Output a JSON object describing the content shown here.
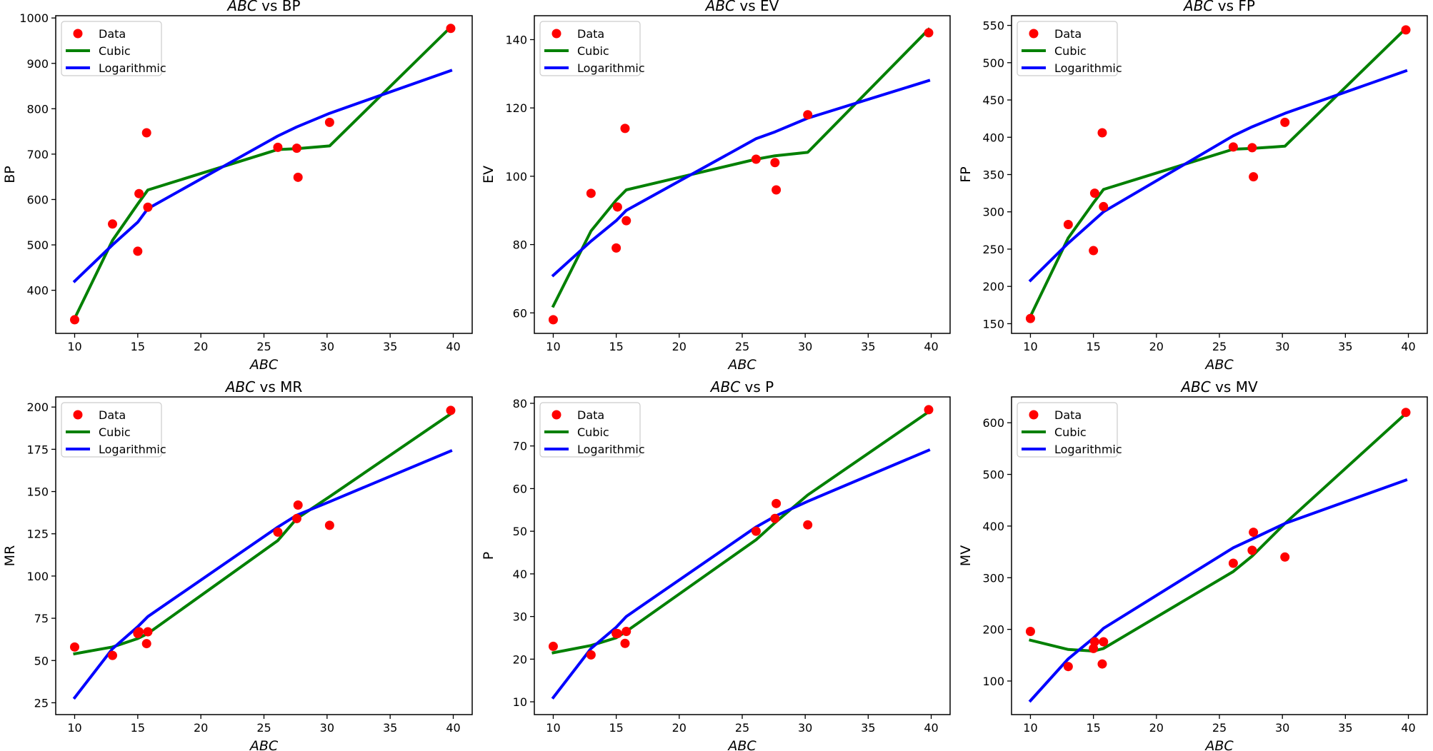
{
  "chart_data": [
    {
      "type": "scatter+line",
      "title_var": "ABC",
      "title_rest": " vs BP",
      "xlabel": "ABC",
      "ylabel": "BP",
      "xlim": [
        8.5,
        41.5
      ],
      "ylim": [
        305,
        1005
      ],
      "xticks": [
        10,
        15,
        20,
        25,
        30,
        35,
        40
      ],
      "yticks": [
        400,
        500,
        600,
        700,
        800,
        900,
        1000
      ],
      "legend": [
        "Data",
        "Cubic",
        "Logarithmic"
      ],
      "legend_position": "upper-left",
      "colors": {
        "data": "#ff0000",
        "cubic": "#008000",
        "log": "#0000ff"
      },
      "data_x": [
        10,
        13,
        15,
        15.1,
        15.8,
        15.7,
        26.1,
        27.6,
        27.7,
        30.2,
        39.8
      ],
      "data_y": [
        335,
        546,
        486,
        613,
        583,
        747,
        715,
        713,
        649,
        770,
        977
      ],
      "cubic_x": [
        10,
        13,
        15,
        15.8,
        26.1,
        27.6,
        30.2,
        39.8
      ],
      "cubic_y": [
        338,
        510,
        590,
        621,
        710,
        712,
        718,
        980
      ],
      "log_x": [
        10,
        13,
        15,
        15.8,
        26.1,
        27.6,
        30.2,
        39.8
      ],
      "log_y": [
        420,
        500,
        550,
        580,
        740,
        760,
        790,
        884
      ]
    },
    {
      "type": "scatter+line",
      "title_var": "ABC",
      "title_rest": " vs EV",
      "xlabel": "ABC",
      "ylabel": "EV",
      "xlim": [
        8.5,
        41.5
      ],
      "ylim": [
        54,
        147
      ],
      "xticks": [
        10,
        15,
        20,
        25,
        30,
        35,
        40
      ],
      "yticks": [
        60,
        80,
        100,
        120,
        140
      ],
      "legend": [
        "Data",
        "Cubic",
        "Logarithmic"
      ],
      "legend_position": "upper-left",
      "colors": {
        "data": "#ff0000",
        "cubic": "#008000",
        "log": "#0000ff"
      },
      "data_x": [
        10,
        13,
        15,
        15.1,
        15.8,
        15.7,
        26.1,
        27.6,
        27.7,
        30.2,
        39.8
      ],
      "data_y": [
        58,
        95,
        79,
        91,
        87,
        114,
        105,
        104,
        96,
        118,
        142
      ],
      "cubic_x": [
        10,
        13,
        15,
        15.8,
        26.1,
        27.6,
        30.2,
        39.8
      ],
      "cubic_y": [
        62,
        84,
        93,
        96,
        105,
        106,
        107,
        143
      ],
      "log_x": [
        10,
        13,
        15,
        15.8,
        26.1,
        27.6,
        30.2,
        39.8
      ],
      "log_y": [
        71,
        81,
        87,
        90,
        111,
        113,
        117,
        128
      ]
    },
    {
      "type": "scatter+line",
      "title_var": "ABC",
      "title_rest": " vs FP",
      "xlabel": "ABC",
      "ylabel": "FP",
      "xlim": [
        8.5,
        41.5
      ],
      "ylim": [
        137,
        563
      ],
      "xticks": [
        10,
        15,
        20,
        25,
        30,
        35,
        40
      ],
      "yticks": [
        150,
        200,
        250,
        300,
        350,
        400,
        450,
        500,
        550
      ],
      "legend": [
        "Data",
        "Cubic",
        "Logarithmic"
      ],
      "legend_position": "upper-left",
      "colors": {
        "data": "#ff0000",
        "cubic": "#008000",
        "log": "#0000ff"
      },
      "data_x": [
        10,
        13,
        15,
        15.1,
        15.8,
        15.7,
        26.1,
        27.6,
        27.7,
        30.2,
        39.8
      ],
      "data_y": [
        157,
        283,
        248,
        325,
        307,
        406,
        387,
        386,
        347,
        420,
        544
      ],
      "cubic_x": [
        10,
        13,
        15,
        15.8,
        26.1,
        27.6,
        30.2,
        39.8
      ],
      "cubic_y": [
        160,
        265,
        312,
        330,
        384,
        385,
        388,
        546
      ],
      "log_x": [
        10,
        13,
        15,
        15.8,
        26.1,
        27.6,
        30.2,
        39.8
      ],
      "log_y": [
        208,
        258,
        288,
        300,
        402,
        414,
        432,
        489
      ]
    },
    {
      "type": "scatter+line",
      "title_var": "ABC",
      "title_rest": " vs MR",
      "xlabel": "ABC",
      "ylabel": "MR",
      "xlim": [
        8.5,
        41.5
      ],
      "ylim": [
        18,
        206
      ],
      "xticks": [
        10,
        15,
        20,
        25,
        30,
        35,
        40
      ],
      "yticks": [
        25,
        50,
        75,
        100,
        125,
        150,
        175,
        200
      ],
      "legend": [
        "Data",
        "Cubic",
        "Logarithmic"
      ],
      "legend_position": "upper-left",
      "colors": {
        "data": "#ff0000",
        "cubic": "#008000",
        "log": "#0000ff"
      },
      "data_x": [
        10,
        13,
        15,
        15.1,
        15.8,
        15.7,
        26.1,
        27.6,
        27.7,
        30.2,
        39.8
      ],
      "data_y": [
        58,
        53,
        66,
        67,
        67,
        60,
        126,
        134,
        142,
        130,
        198
      ],
      "cubic_x": [
        10,
        13,
        15,
        15.8,
        26.1,
        27.6,
        30.2,
        39.8
      ],
      "cubic_y": [
        54,
        58,
        63,
        66,
        121,
        134,
        147,
        196
      ],
      "log_x": [
        10,
        13,
        15,
        15.8,
        26.1,
        27.6,
        30.2,
        39.8
      ],
      "log_y": [
        28,
        57,
        70,
        76,
        129,
        136,
        144,
        174
      ]
    },
    {
      "type": "scatter+line",
      "title_var": "ABC",
      "title_rest": " vs P",
      "xlabel": "ABC",
      "ylabel": "P",
      "xlim": [
        8.5,
        41.5
      ],
      "ylim": [
        7,
        81.5
      ],
      "xticks": [
        10,
        15,
        20,
        25,
        30,
        35,
        40
      ],
      "yticks": [
        10,
        20,
        30,
        40,
        50,
        60,
        70,
        80
      ],
      "legend": [
        "Data",
        "Cubic",
        "Logarithmic"
      ],
      "legend_position": "upper-left",
      "colors": {
        "data": "#ff0000",
        "cubic": "#008000",
        "log": "#0000ff"
      },
      "data_x": [
        10,
        13,
        15,
        15.1,
        15.8,
        15.7,
        26.1,
        27.6,
        27.7,
        30.2,
        39.8
      ],
      "data_y": [
        23,
        21,
        26,
        26,
        26.5,
        23.7,
        50,
        53,
        56.5,
        51.5,
        78.5
      ],
      "cubic_x": [
        10,
        13,
        15,
        15.8,
        26.1,
        27.6,
        30.2,
        39.8
      ],
      "cubic_y": [
        21.5,
        23.2,
        25,
        26.5,
        48,
        52,
        58.5,
        78
      ],
      "log_x": [
        10,
        13,
        15,
        15.8,
        26.1,
        27.6,
        30.2,
        39.8
      ],
      "log_y": [
        11,
        22.5,
        27.5,
        30,
        51,
        53.5,
        57,
        69
      ]
    },
    {
      "type": "scatter+line",
      "title_var": "ABC",
      "title_rest": " vs MV",
      "xlabel": "ABC",
      "ylabel": "MV",
      "xlim": [
        8.5,
        41.5
      ],
      "ylim": [
        35,
        650
      ],
      "xticks": [
        10,
        15,
        20,
        25,
        30,
        35,
        40
      ],
      "yticks": [
        100,
        200,
        300,
        400,
        500,
        600
      ],
      "legend": [
        "Data",
        "Cubic",
        "Logarithmic"
      ],
      "legend_position": "upper-left",
      "colors": {
        "data": "#ff0000",
        "cubic": "#008000",
        "log": "#0000ff"
      },
      "data_x": [
        10,
        13,
        15,
        15.1,
        15.8,
        15.7,
        26.1,
        27.6,
        27.7,
        30.2,
        39.8
      ],
      "data_y": [
        196,
        128,
        163,
        176,
        176,
        133,
        328,
        353,
        388,
        340,
        620
      ],
      "cubic_x": [
        10,
        13,
        15,
        15.8,
        26.1,
        27.6,
        30.2,
        39.8
      ],
      "cubic_y": [
        179,
        161,
        158,
        163,
        312,
        342,
        405,
        618
      ],
      "log_x": [
        10,
        13,
        15,
        15.8,
        26.1,
        27.6,
        30.2,
        39.8
      ],
      "log_y": [
        62,
        143,
        183,
        202,
        358,
        375,
        405,
        489
      ]
    }
  ]
}
